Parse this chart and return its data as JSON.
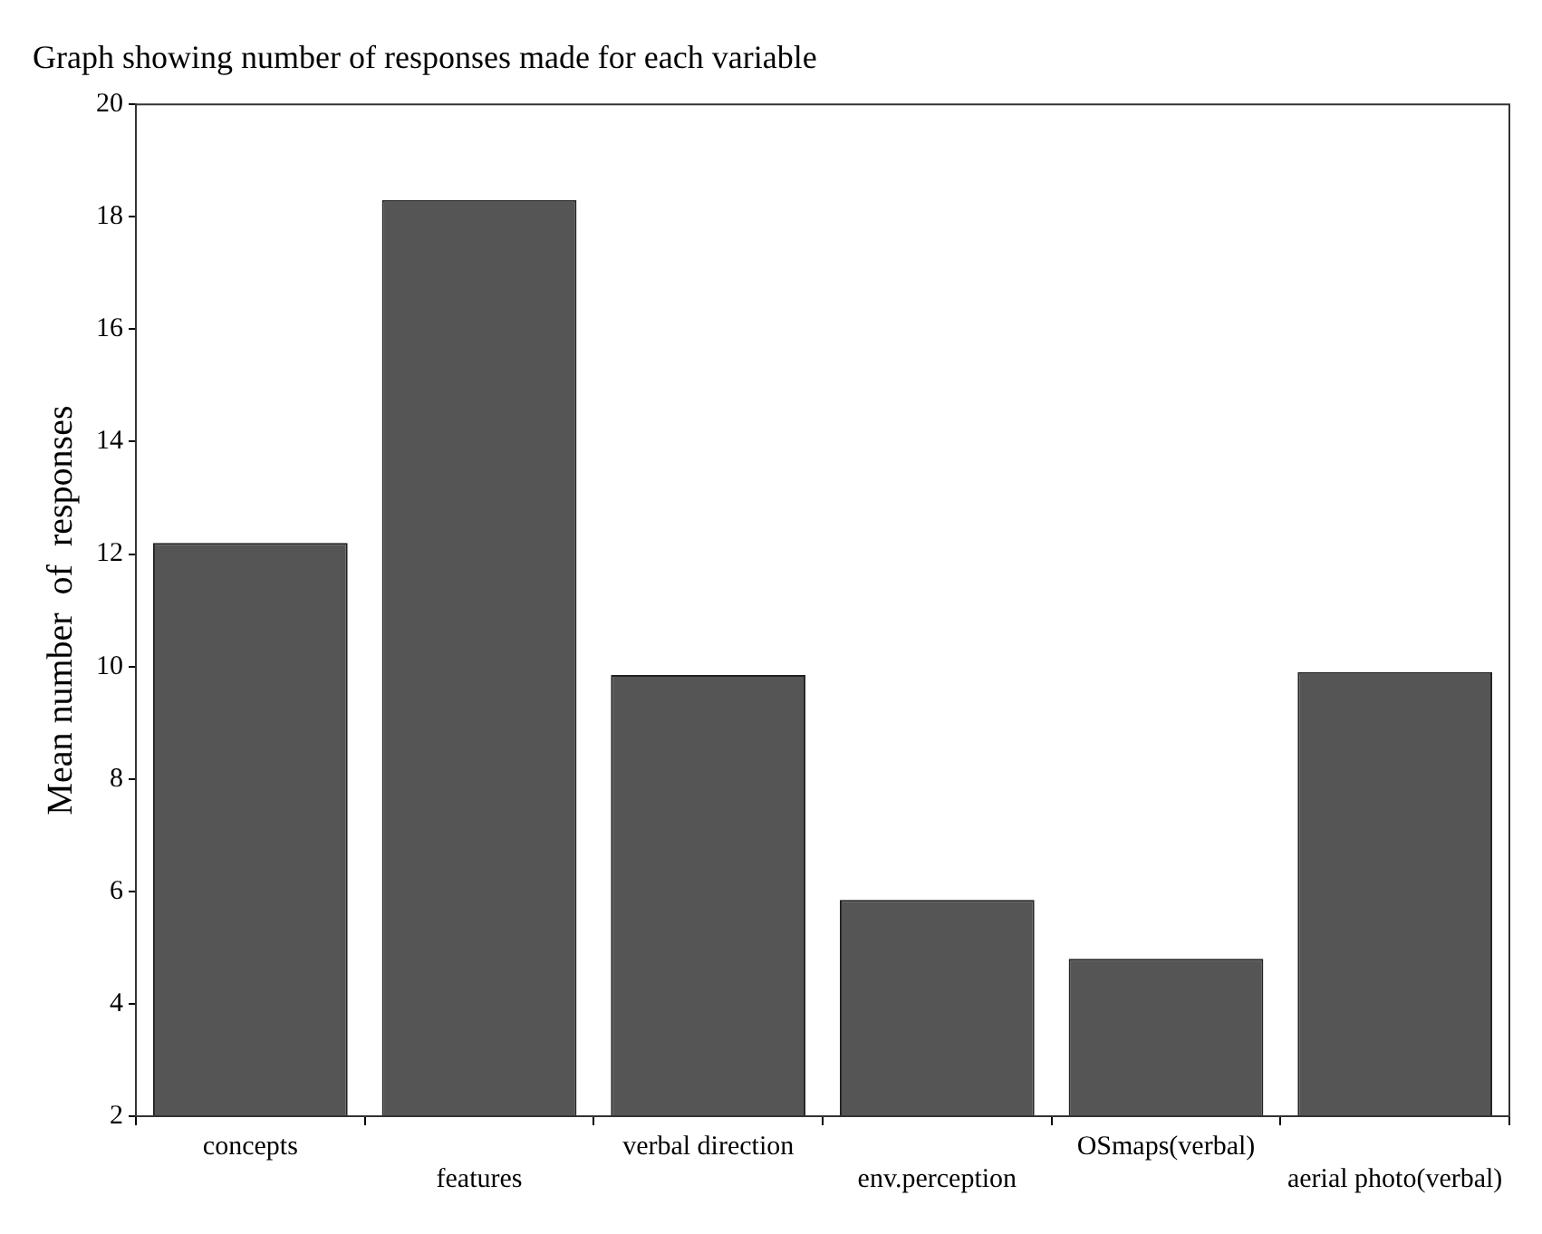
{
  "chart_data": {
    "type": "bar",
    "title": "Graph showing number of responses made for each variable",
    "ylabel": "Mean number  of  responses",
    "categories": [
      "concepts",
      "features",
      "verbal direction",
      "env.perception",
      "OSmaps(verbal)",
      "aerial photo(verbal)"
    ],
    "values": [
      12.2,
      18.3,
      9.85,
      5.85,
      4.8,
      9.9
    ],
    "color": "#555555",
    "ylim": [
      2,
      20
    ],
    "yticks": [
      2,
      4,
      6,
      8,
      10,
      12,
      14,
      16,
      18,
      20
    ],
    "grid": false,
    "legend": false
  }
}
